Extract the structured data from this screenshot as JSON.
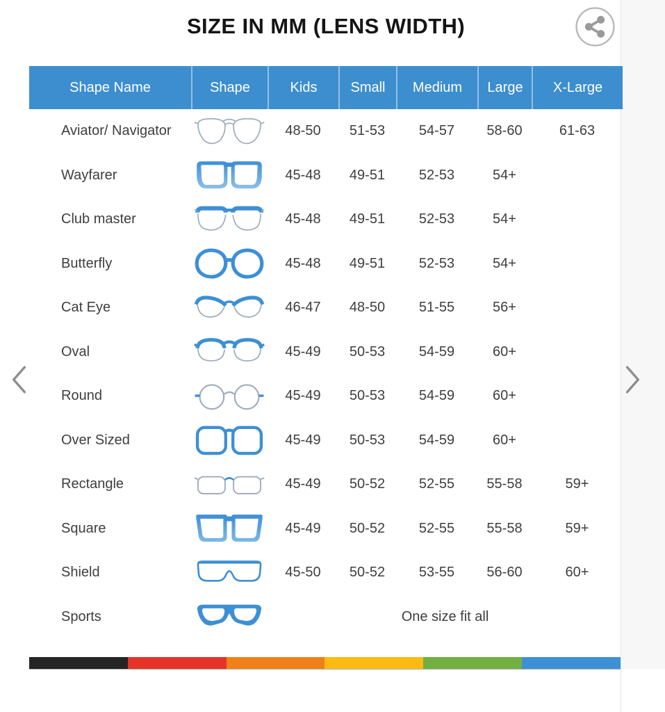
{
  "title": "SIZE IN MM (LENS WIDTH)",
  "columns": [
    "Shape Name",
    "Shape",
    "Kids",
    "Small",
    "Medium",
    "Large",
    "X-Large"
  ],
  "rows": [
    {
      "name": "Aviator/ Navigator",
      "icon": "aviator",
      "sizes": [
        "48-50",
        "51-53",
        "54-57",
        "58-60",
        "61-63"
      ]
    },
    {
      "name": "Wayfarer",
      "icon": "wayfarer",
      "sizes": [
        "45-48",
        "49-51",
        "52-53",
        "54+",
        ""
      ]
    },
    {
      "name": "Club master",
      "icon": "clubmaster",
      "sizes": [
        "45-48",
        "49-51",
        "52-53",
        "54+",
        ""
      ]
    },
    {
      "name": "Butterfly",
      "icon": "butterfly",
      "sizes": [
        "45-48",
        "49-51",
        "52-53",
        "54+",
        ""
      ]
    },
    {
      "name": "Cat Eye",
      "icon": "cateye",
      "sizes": [
        "46-47",
        "48-50",
        "51-55",
        "56+",
        ""
      ]
    },
    {
      "name": "Oval",
      "icon": "oval",
      "sizes": [
        "45-49",
        "50-53",
        "54-59",
        "60+",
        ""
      ]
    },
    {
      "name": "Round",
      "icon": "round",
      "sizes": [
        "45-49",
        "50-53",
        "54-59",
        "60+",
        ""
      ]
    },
    {
      "name": "Over Sized",
      "icon": "oversized",
      "sizes": [
        "45-49",
        "50-53",
        "54-59",
        "60+",
        ""
      ]
    },
    {
      "name": "Rectangle",
      "icon": "rectangle",
      "sizes": [
        "45-49",
        "50-52",
        "52-55",
        "55-58",
        "59+"
      ]
    },
    {
      "name": "Square",
      "icon": "square",
      "sizes": [
        "45-49",
        "50-52",
        "52-55",
        "55-58",
        "59+"
      ]
    },
    {
      "name": "Shield",
      "icon": "shield",
      "sizes": [
        "45-50",
        "50-52",
        "53-55",
        "56-60",
        "60+"
      ]
    },
    {
      "name": "Sports",
      "icon": "sports",
      "one_size": "One size fit all"
    }
  ],
  "icons": {
    "share": "share-icon",
    "prev": "chevron-left-icon",
    "next": "chevron-right-icon"
  },
  "footer_stripe": [
    "#252525",
    "#e63329",
    "#f08019",
    "#fcba12",
    "#72b043",
    "#3d90d6"
  ],
  "colors": {
    "header_bg": "#3d8ecf",
    "header_text": "#ffffff",
    "row_text": "#3e3e3e",
    "title_text": "#151515",
    "icon_blue": "#3e8fd4",
    "icon_gray": "#9fadbc",
    "chevron_gray": "#8d8d8d"
  }
}
